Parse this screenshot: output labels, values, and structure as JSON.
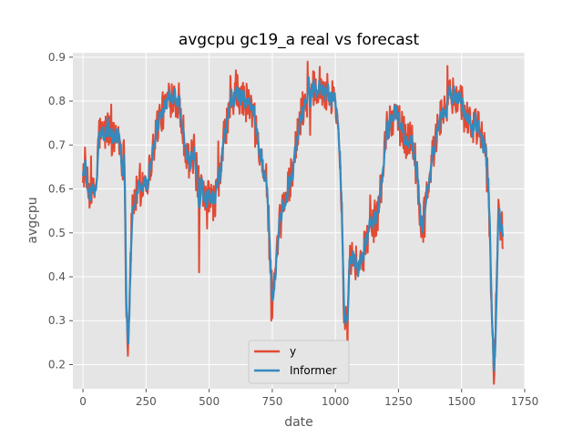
{
  "chart_data": {
    "type": "line",
    "title": "avgcpu gc19_a real vs forecast",
    "xlabel": "date",
    "ylabel": "avgcpu",
    "xlim": [
      -40,
      1750
    ],
    "ylim": [
      0.145,
      0.91
    ],
    "xticks": [
      0,
      250,
      500,
      750,
      1000,
      1250,
      1500,
      1750
    ],
    "yticks": [
      0.2,
      0.3,
      0.4,
      0.5,
      0.6,
      0.7,
      0.8,
      0.9
    ],
    "grid": true,
    "legend": "lower center",
    "x_start": 0,
    "x_end": 1665,
    "anchors": [
      [
        0,
        0.65
      ],
      [
        20,
        0.6
      ],
      [
        40,
        0.58
      ],
      [
        55,
        0.62
      ],
      [
        62,
        0.73
      ],
      [
        80,
        0.72
      ],
      [
        100,
        0.74
      ],
      [
        120,
        0.71
      ],
      [
        140,
        0.73
      ],
      [
        155,
        0.66
      ],
      [
        165,
        0.68
      ],
      [
        172,
        0.3
      ],
      [
        180,
        0.27
      ],
      [
        186,
        0.4
      ],
      [
        195,
        0.55
      ],
      [
        205,
        0.58
      ],
      [
        220,
        0.59
      ],
      [
        240,
        0.62
      ],
      [
        260,
        0.63
      ],
      [
        280,
        0.7
      ],
      [
        300,
        0.76
      ],
      [
        320,
        0.78
      ],
      [
        340,
        0.8
      ],
      [
        360,
        0.82
      ],
      [
        380,
        0.79
      ],
      [
        400,
        0.72
      ],
      [
        420,
        0.66
      ],
      [
        440,
        0.68
      ],
      [
        460,
        0.6
      ],
      [
        480,
        0.57
      ],
      [
        500,
        0.58
      ],
      [
        520,
        0.57
      ],
      [
        540,
        0.62
      ],
      [
        560,
        0.72
      ],
      [
        580,
        0.78
      ],
      [
        600,
        0.8
      ],
      [
        620,
        0.81
      ],
      [
        640,
        0.8
      ],
      [
        660,
        0.79
      ],
      [
        680,
        0.76
      ],
      [
        700,
        0.7
      ],
      [
        715,
        0.65
      ],
      [
        730,
        0.6
      ],
      [
        740,
        0.45
      ],
      [
        750,
        0.35
      ],
      [
        760,
        0.38
      ],
      [
        770,
        0.45
      ],
      [
        780,
        0.52
      ],
      [
        800,
        0.58
      ],
      [
        820,
        0.62
      ],
      [
        840,
        0.68
      ],
      [
        860,
        0.76
      ],
      [
        880,
        0.8
      ],
      [
        900,
        0.82
      ],
      [
        920,
        0.84
      ],
      [
        940,
        0.84
      ],
      [
        960,
        0.82
      ],
      [
        980,
        0.82
      ],
      [
        1000,
        0.8
      ],
      [
        1015,
        0.72
      ],
      [
        1025,
        0.55
      ],
      [
        1035,
        0.3
      ],
      [
        1045,
        0.32
      ],
      [
        1055,
        0.45
      ],
      [
        1070,
        0.45
      ],
      [
        1090,
        0.42
      ],
      [
        1110,
        0.45
      ],
      [
        1130,
        0.5
      ],
      [
        1150,
        0.52
      ],
      [
        1170,
        0.55
      ],
      [
        1185,
        0.63
      ],
      [
        1200,
        0.72
      ],
      [
        1220,
        0.76
      ],
      [
        1240,
        0.78
      ],
      [
        1260,
        0.74
      ],
      [
        1280,
        0.71
      ],
      [
        1300,
        0.72
      ],
      [
        1320,
        0.65
      ],
      [
        1335,
        0.55
      ],
      [
        1345,
        0.5
      ],
      [
        1360,
        0.58
      ],
      [
        1380,
        0.66
      ],
      [
        1400,
        0.72
      ],
      [
        1420,
        0.77
      ],
      [
        1440,
        0.79
      ],
      [
        1460,
        0.81
      ],
      [
        1480,
        0.82
      ],
      [
        1500,
        0.8
      ],
      [
        1520,
        0.77
      ],
      [
        1540,
        0.74
      ],
      [
        1560,
        0.74
      ],
      [
        1580,
        0.72
      ],
      [
        1600,
        0.66
      ],
      [
        1612,
        0.5
      ],
      [
        1620,
        0.28
      ],
      [
        1628,
        0.2
      ],
      [
        1636,
        0.32
      ],
      [
        1645,
        0.55
      ],
      [
        1655,
        0.52
      ],
      [
        1665,
        0.5
      ]
    ],
    "spikes": [
      [
        178,
        0.22
      ],
      [
        460,
        0.41
      ],
      [
        606,
        0.87
      ],
      [
        612,
        0.86
      ],
      [
        745,
        0.3
      ],
      [
        890,
        0.89
      ],
      [
        1048,
        0.21
      ],
      [
        1443,
        0.88
      ],
      [
        1630,
        0.18
      ]
    ],
    "series": [
      {
        "name": "y",
        "color": "#e24a33"
      },
      {
        "name": "Informer",
        "color": "#348abd"
      }
    ]
  }
}
